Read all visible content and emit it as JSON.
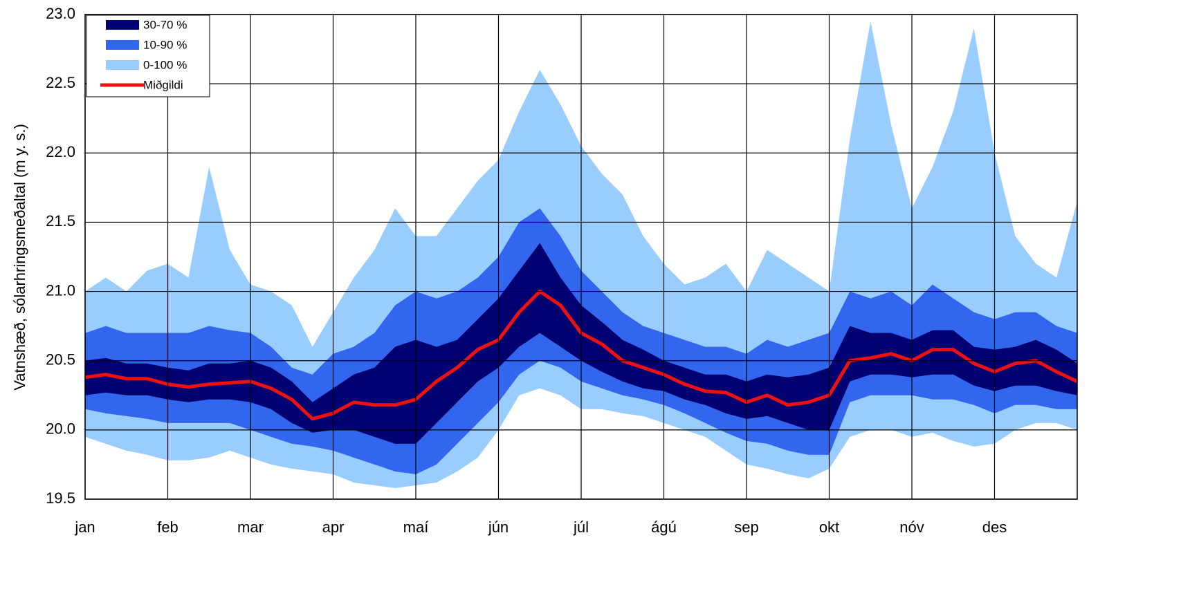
{
  "chart_data": {
    "type": "band",
    "ylabel": "Vatnshæð, sólarhringsmeðaltal (m y. s.)",
    "xlim": [
      0,
      12
    ],
    "xticks": [
      {
        "value": 0,
        "label": "jan"
      },
      {
        "value": 1,
        "label": "feb"
      },
      {
        "value": 2,
        "label": "mar"
      },
      {
        "value": 3,
        "label": "apr"
      },
      {
        "value": 4,
        "label": "maí"
      },
      {
        "value": 5,
        "label": "jún"
      },
      {
        "value": 6,
        "label": "júl"
      },
      {
        "value": 7,
        "label": "ágú"
      },
      {
        "value": 8,
        "label": "sep"
      },
      {
        "value": 9,
        "label": "okt"
      },
      {
        "value": 10,
        "label": "nóv"
      },
      {
        "value": 11,
        "label": "des"
      }
    ],
    "ylim": [
      19.5,
      23
    ],
    "yticks": [
      19.5,
      {
        "value": 20,
        "label": "20.0"
      },
      20.5,
      {
        "value": 21,
        "label": "21.0"
      },
      21.5,
      {
        "value": 22,
        "label": "22.0"
      },
      22.5,
      {
        "value": 23,
        "label": "23.0"
      }
    ],
    "grid": true,
    "x": [
      0,
      0.25,
      0.5,
      0.75,
      1,
      1.25,
      1.5,
      1.75,
      2,
      2.25,
      2.5,
      2.75,
      3,
      3.25,
      3.5,
      3.75,
      4,
      4.25,
      4.5,
      4.75,
      5,
      5.25,
      5.5,
      5.75,
      6,
      6.25,
      6.5,
      6.75,
      7,
      7.25,
      7.5,
      7.75,
      8,
      8.25,
      8.5,
      8.75,
      9,
      9.25,
      9.5,
      9.75,
      10,
      10.25,
      10.5,
      10.75,
      11,
      11.25,
      11.5,
      11.75,
      12
    ],
    "bands": [
      {
        "name": "30-70 %",
        "color": "#000070",
        "lower": [
          20.25,
          20.27,
          20.25,
          20.25,
          20.22,
          20.2,
          20.22,
          20.22,
          20.2,
          20.15,
          20.05,
          19.98,
          20,
          20,
          19.95,
          19.9,
          19.9,
          20.05,
          20.2,
          20.35,
          20.45,
          20.6,
          20.7,
          20.6,
          20.5,
          20.42,
          20.35,
          20.3,
          20.28,
          20.22,
          20.18,
          20.12,
          20.08,
          20.1,
          20.05,
          20,
          20,
          20.35,
          20.4,
          20.4,
          20.38,
          20.4,
          20.4,
          20.32,
          20.28,
          20.32,
          20.32,
          20.28,
          20.25
        ],
        "upper": [
          20.5,
          20.52,
          20.48,
          20.48,
          20.45,
          20.43,
          20.48,
          20.48,
          20.5,
          20.45,
          20.35,
          20.2,
          20.3,
          20.4,
          20.45,
          20.6,
          20.65,
          20.6,
          20.65,
          20.8,
          20.95,
          21.15,
          21.35,
          21.1,
          20.9,
          20.78,
          20.65,
          20.58,
          20.5,
          20.45,
          20.4,
          20.4,
          20.35,
          20.4,
          20.38,
          20.4,
          20.45,
          20.75,
          20.7,
          20.7,
          20.65,
          20.72,
          20.72,
          20.6,
          20.58,
          20.6,
          20.65,
          20.58,
          20.48
        ]
      },
      {
        "name": "10-90 %",
        "color": "#3366ee",
        "lower": [
          20.15,
          20.12,
          20.1,
          20.08,
          20.05,
          20.05,
          20.05,
          20.05,
          20,
          19.95,
          19.9,
          19.88,
          19.85,
          19.8,
          19.75,
          19.7,
          19.68,
          19.75,
          19.9,
          20.05,
          20.2,
          20.4,
          20.5,
          20.45,
          20.35,
          20.3,
          20.25,
          20.22,
          20.18,
          20.12,
          20.05,
          19.98,
          19.92,
          19.9,
          19.85,
          19.82,
          19.82,
          20.2,
          20.25,
          20.25,
          20.25,
          20.22,
          20.22,
          20.18,
          20.12,
          20.18,
          20.18,
          20.15,
          20.15
        ],
        "upper": [
          20.7,
          20.75,
          20.7,
          20.7,
          20.7,
          20.7,
          20.75,
          20.72,
          20.7,
          20.6,
          20.45,
          20.4,
          20.55,
          20.6,
          20.7,
          20.9,
          21,
          20.95,
          21,
          21.1,
          21.25,
          21.5,
          21.6,
          21.4,
          21.15,
          21,
          20.85,
          20.75,
          20.7,
          20.65,
          20.6,
          20.6,
          20.55,
          20.65,
          20.6,
          20.65,
          20.7,
          21,
          20.95,
          21,
          20.9,
          21.05,
          20.95,
          20.85,
          20.8,
          20.85,
          20.85,
          20.75,
          20.7
        ]
      },
      {
        "name": "0-100 %",
        "color": "#99ccff",
        "lower": [
          19.95,
          19.9,
          19.85,
          19.82,
          19.78,
          19.78,
          19.8,
          19.85,
          19.8,
          19.75,
          19.72,
          19.7,
          19.68,
          19.62,
          19.6,
          19.58,
          19.6,
          19.62,
          19.7,
          19.8,
          20,
          20.25,
          20.3,
          20.25,
          20.15,
          20.15,
          20.12,
          20.1,
          20.05,
          20,
          19.95,
          19.85,
          19.75,
          19.72,
          19.68,
          19.65,
          19.72,
          19.95,
          20,
          20,
          19.95,
          19.98,
          19.92,
          19.88,
          19.9,
          20,
          20.05,
          20.05,
          20
        ],
        "upper": [
          21,
          21.1,
          21,
          21.15,
          21.2,
          21.1,
          21.9,
          21.3,
          21.05,
          21,
          20.9,
          20.6,
          20.85,
          21.1,
          21.3,
          21.6,
          21.4,
          21.4,
          21.6,
          21.8,
          21.95,
          22.3,
          22.6,
          22.35,
          22.05,
          21.85,
          21.7,
          21.4,
          21.2,
          21.05,
          21.1,
          21.2,
          21,
          21.3,
          21.2,
          21.1,
          21,
          22.1,
          22.95,
          22.2,
          21.6,
          21.9,
          22.3,
          22.9,
          22,
          21.4,
          21.2,
          21.1,
          21.65
        ]
      }
    ],
    "line": {
      "name": "Miðgildi",
      "color": "#ee1111",
      "values": [
        20.38,
        20.4,
        20.37,
        20.37,
        20.33,
        20.31,
        20.33,
        20.34,
        20.35,
        20.3,
        20.22,
        20.08,
        20.12,
        20.2,
        20.18,
        20.18,
        20.22,
        20.35,
        20.45,
        20.58,
        20.65,
        20.85,
        21,
        20.9,
        20.7,
        20.62,
        20.5,
        20.45,
        20.4,
        20.33,
        20.28,
        20.27,
        20.2,
        20.25,
        20.18,
        20.2,
        20.25,
        20.5,
        20.52,
        20.55,
        20.5,
        20.58,
        20.58,
        20.48,
        20.42,
        20.48,
        20.5,
        20.42,
        20.35
      ]
    }
  }
}
